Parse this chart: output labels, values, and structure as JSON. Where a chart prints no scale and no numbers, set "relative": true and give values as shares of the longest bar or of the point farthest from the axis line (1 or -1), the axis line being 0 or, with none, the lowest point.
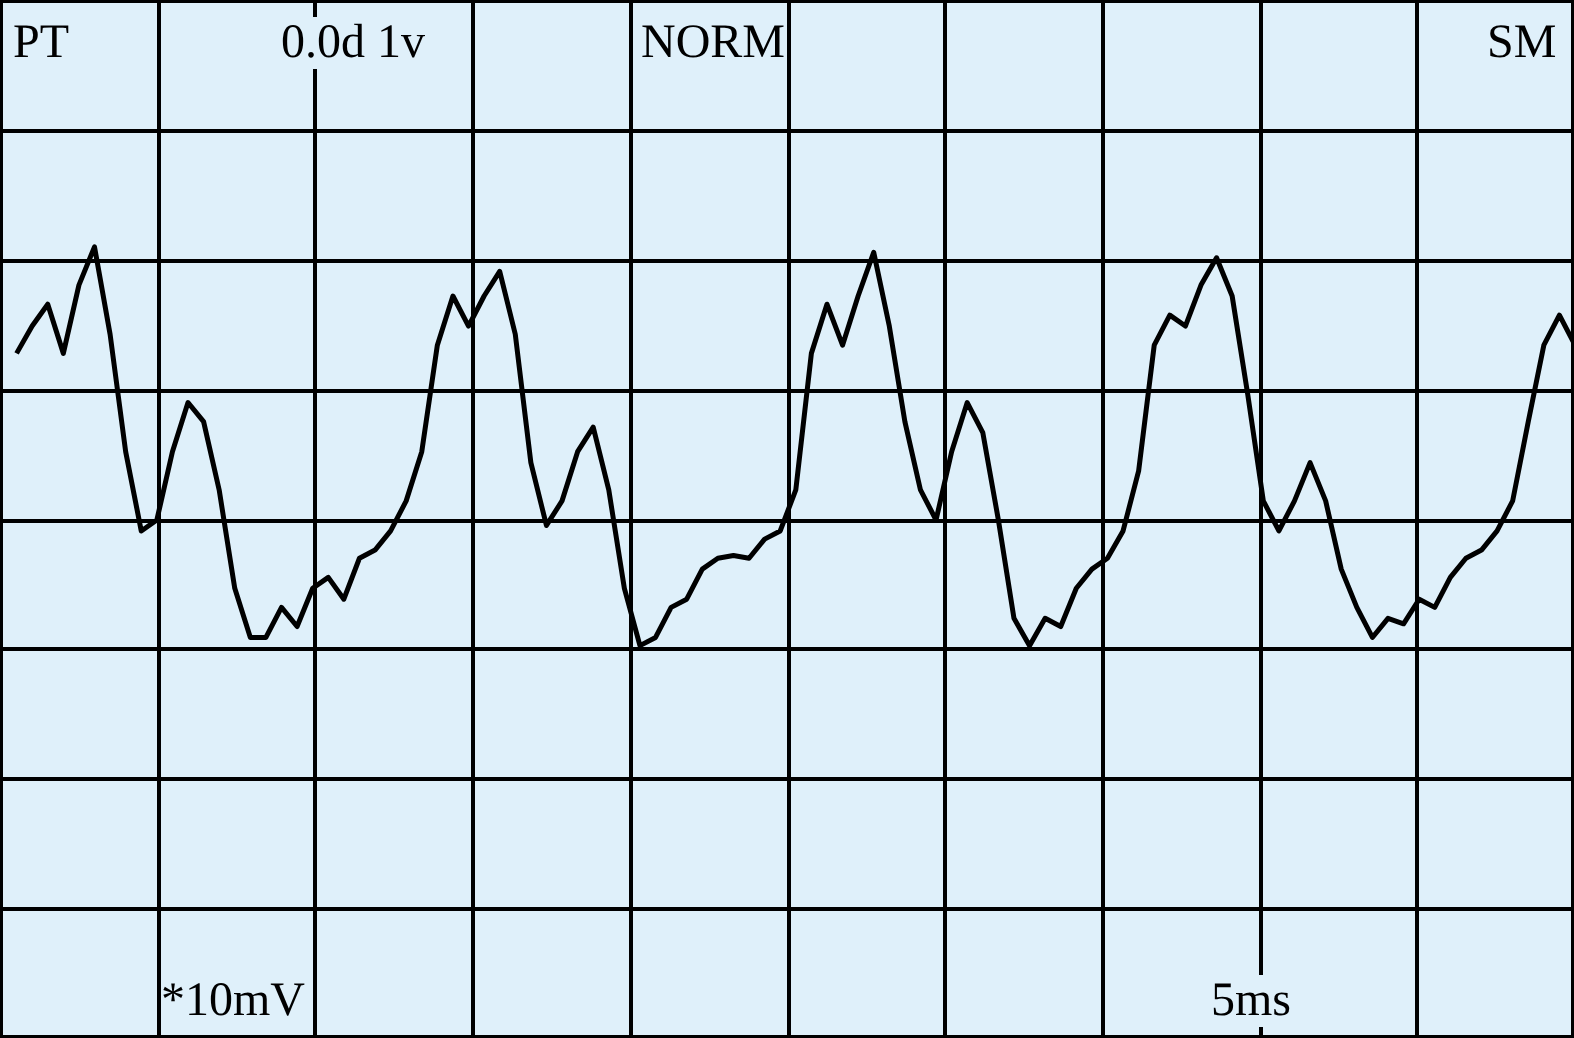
{
  "chart_data": {
    "type": "line",
    "relative": true,
    "annotations": [
      "PT",
      "0.0d 1v",
      "NORM",
      "SM",
      "*10mV",
      "5ms"
    ],
    "categories": [
      null,
      null,
      null,
      null,
      null,
      null,
      null,
      null,
      null,
      null,
      null,
      null,
      null,
      null,
      null,
      null,
      null,
      null,
      null,
      null,
      null,
      null,
      null,
      null,
      null,
      null,
      null,
      null,
      null,
      null,
      null,
      null,
      null,
      null,
      null,
      null,
      null,
      null,
      null,
      null,
      null,
      null,
      null,
      null,
      null,
      null,
      null,
      null,
      null,
      null,
      null,
      null,
      null,
      null,
      null,
      null,
      null,
      null,
      null,
      null,
      null,
      null,
      null,
      null,
      null,
      null,
      null,
      null,
      null,
      null,
      null,
      null,
      null,
      null,
      null,
      null,
      null,
      null,
      null,
      null,
      null,
      null,
      null,
      null,
      null,
      null,
      null,
      null,
      null,
      null,
      null,
      null,
      null,
      null,
      null,
      null,
      null,
      null,
      null,
      null,
      null
    ],
    "series": [
      {
        "color": "#000000",
        "values": [
          0.61,
          0.71,
          0.79,
          0.61,
          0.86,
          1.0,
          0.68,
          0.25,
          -0.04,
          0,
          0.25,
          0.43,
          0.36,
          0.11,
          -0.25,
          -0.43,
          -0.43,
          -0.32,
          -0.39,
          -0.25,
          -0.21,
          -0.29,
          -0.14,
          -0.11,
          -0.04,
          0.07,
          0.25,
          0.64,
          0.82,
          0.71,
          0.82,
          0.91,
          0.68,
          0.21,
          -0.02,
          0.07,
          0.25,
          0.34,
          0.11,
          -0.25,
          -0.46,
          -0.43,
          -0.32,
          -0.29,
          -0.18,
          -0.14,
          -0.13,
          -0.14,
          -0.07,
          -0.04,
          0.11,
          0.61,
          0.79,
          0.64,
          0.82,
          0.98,
          0.71,
          0.36,
          0.11,
          0,
          0.25,
          0.43,
          0.32,
          0,
          -0.36,
          -0.46,
          -0.36,
          -0.39,
          -0.25,
          -0.18,
          -0.14,
          -0.04,
          0.18,
          0.64,
          0.75,
          0.71,
          0.86,
          0.96,
          0.82,
          0.46,
          0.07,
          -0.04,
          0.07,
          0.21,
          0.07,
          -0.18,
          -0.32,
          -0.43,
          -0.36,
          -0.38,
          -0.29,
          -0.32,
          -0.21,
          -0.14,
          -0.11,
          -0.04,
          0.07,
          0.36,
          0.64,
          0.75,
          0.64
        ]
      }
    ],
    "grid": true,
    "tick_labels": false,
    "marker": "none",
    "line_style": "solid"
  }
}
